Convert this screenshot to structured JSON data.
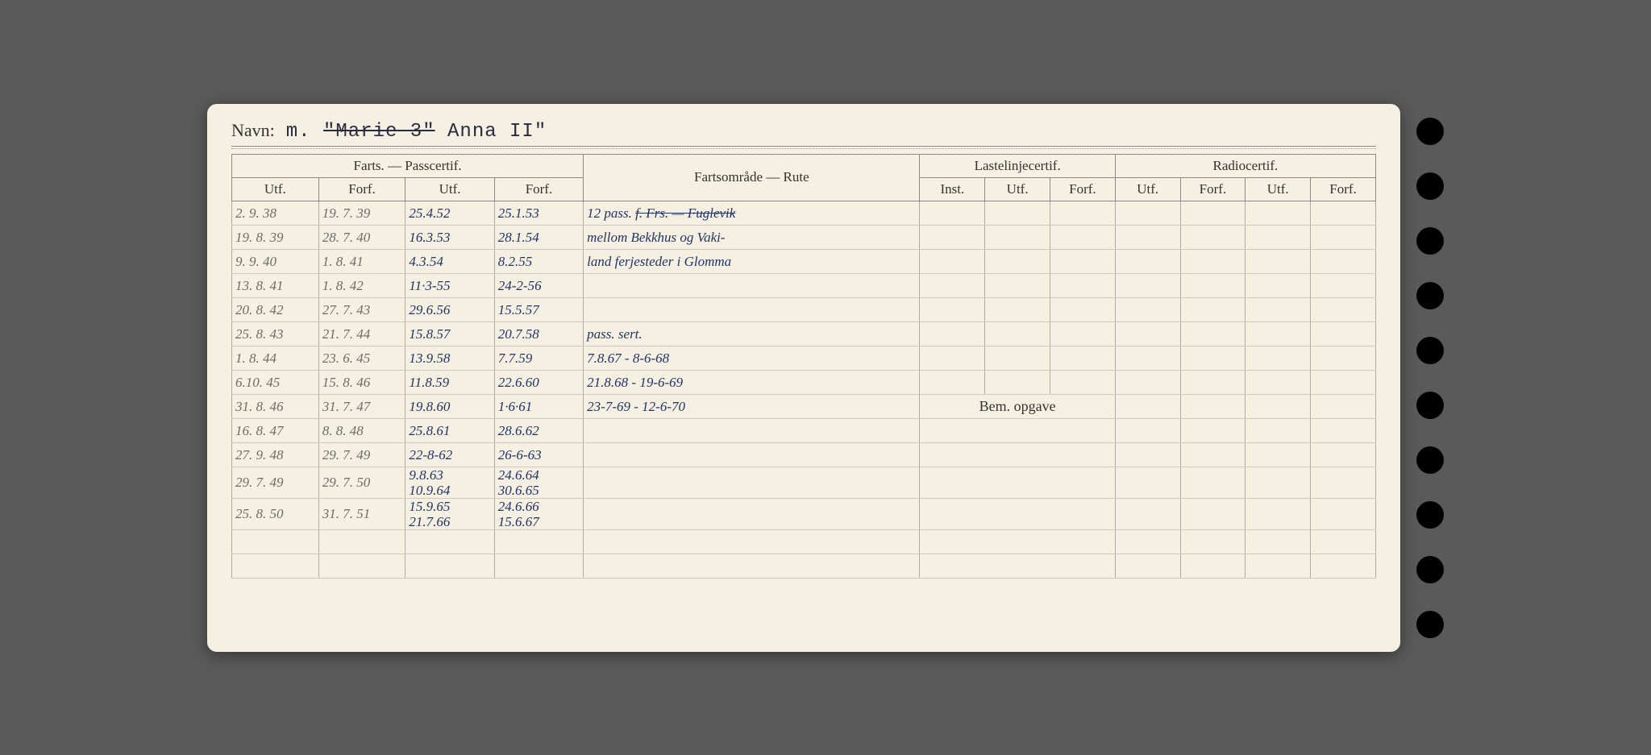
{
  "navn": {
    "label": "Navn:",
    "prefix": "m.",
    "strike": "\"Marie 3\"",
    "rest": "Anna II\""
  },
  "headers": {
    "group1": "Farts. — Passcertif.",
    "group2": "Fartsområde — Rute",
    "group3": "Lastelinjecertif.",
    "group4": "Radiocertif.",
    "utf": "Utf.",
    "forf": "Forf.",
    "inst": "Inst.",
    "bem": "Bem. opgave"
  },
  "rows": [
    {
      "c1": "2. 9. 38",
      "c2": "19. 7. 39",
      "c3": "25.4.52",
      "c4": "25.1.53",
      "rute": "12 pass. f. Frs. — Fuglevik",
      "strike": true
    },
    {
      "c1": "19. 8. 39",
      "c2": "28. 7. 40",
      "c3": "16.3.53",
      "c4": "28.1.54",
      "rute": "mellom Bekkhus og Vaki-"
    },
    {
      "c1": "9. 9. 40",
      "c2": "1. 8. 41",
      "c3": "4.3.54",
      "c4": "8.2.55",
      "rute": "land ferjesteder i Glomma"
    },
    {
      "c1": "13. 8. 41",
      "c2": "1. 8. 42",
      "c3": "11·3-55",
      "c4": "24-2-56",
      "rute": ""
    },
    {
      "c1": "20. 8. 42",
      "c2": "27. 7. 43",
      "c3": "29.6.56",
      "c4": "15.5.57",
      "rute": ""
    },
    {
      "c1": "25. 8. 43",
      "c2": "21. 7. 44",
      "c3": "15.8.57",
      "c4": "20.7.58",
      "rute": "pass. sert."
    },
    {
      "c1": "1. 8. 44",
      "c2": "23. 6. 45",
      "c3": "13.9.58",
      "c4": "7.7.59",
      "rute": "7.8.67 - 8-6-68"
    },
    {
      "c1": "6.10. 45",
      "c2": "15. 8. 46",
      "c3": "11.8.59",
      "c4": "22.6.60",
      "rute": "21.8.68 - 19-6-69"
    },
    {
      "c1": "31. 8. 46",
      "c2": "31. 7. 47",
      "c3": "19.8.60",
      "c4": "1·6·61",
      "rute": "23-7-69 - 12-6-70"
    },
    {
      "c1": "16. 8. 47",
      "c2": "8. 8. 48",
      "c3": "25.8.61",
      "c4": "28.6.62",
      "rute": ""
    },
    {
      "c1": "27. 9. 48",
      "c2": "29. 7. 49",
      "c3": "22-8-62",
      "c4": "26-6-63",
      "rute": ""
    },
    {
      "c1": "29. 7. 49",
      "c2": "29. 7. 50",
      "c3": "9.8.63",
      "c3b": "10.9.64",
      "c4": "24.6.64",
      "c4b": "30.6.65",
      "rute": ""
    },
    {
      "c1": "25. 8. 50",
      "c2": "31. 7. 51",
      "c3": "15.9.65",
      "c3b": "21.7.66",
      "c4": "24.6.66",
      "c4b": "15.6.67",
      "rute": ""
    }
  ]
}
